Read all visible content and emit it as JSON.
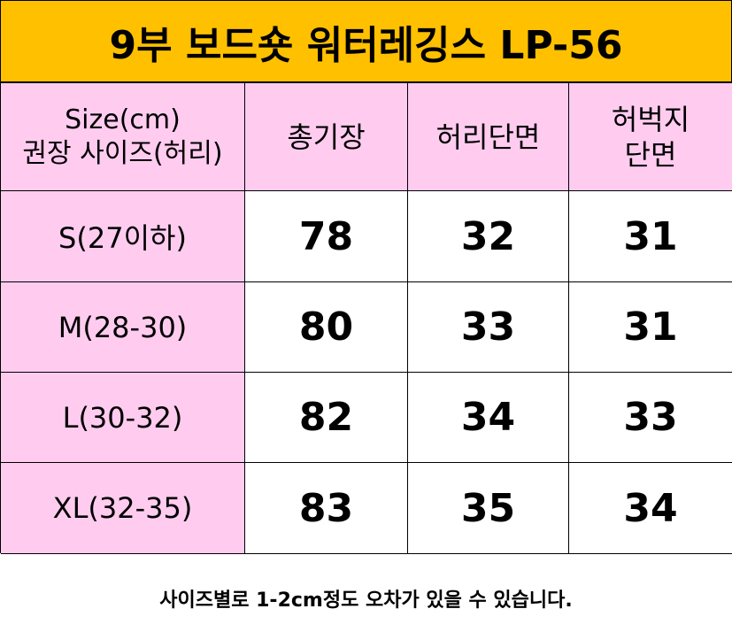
{
  "header": {
    "title": "9부 보드숏 워터레깅스 LP-56"
  },
  "table": {
    "columns": [
      [
        "Size(cm)",
        "권장 사이즈(허리)"
      ],
      [
        "총기장"
      ],
      [
        "허리단면"
      ],
      [
        "허벅지",
        "단면"
      ]
    ],
    "rows": [
      [
        "S(27이하)",
        78,
        32,
        31
      ],
      [
        "M(28-30)",
        80,
        33,
        31
      ],
      [
        "L(30-32)",
        82,
        34,
        33
      ],
      [
        "XL(32-35)",
        83,
        35,
        34
      ]
    ]
  },
  "footer": {
    "note": "사이즈별로 1-2cm정도 오차가 있을 수 있습니다."
  }
}
